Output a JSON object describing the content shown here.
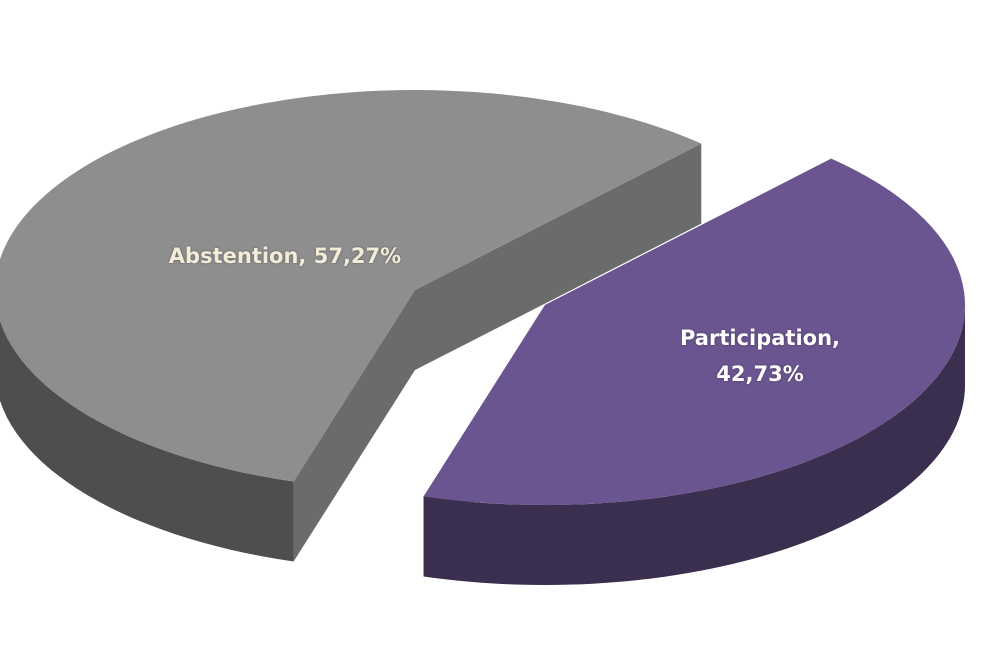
{
  "chart_data": {
    "type": "pie3d",
    "values": [
      57.27,
      42.73
    ],
    "value_labels": [
      "Abstention, 57,27%",
      "Participation, 42,73%"
    ],
    "colors": [
      "#8e8e8e",
      "#6b5590"
    ]
  }
}
